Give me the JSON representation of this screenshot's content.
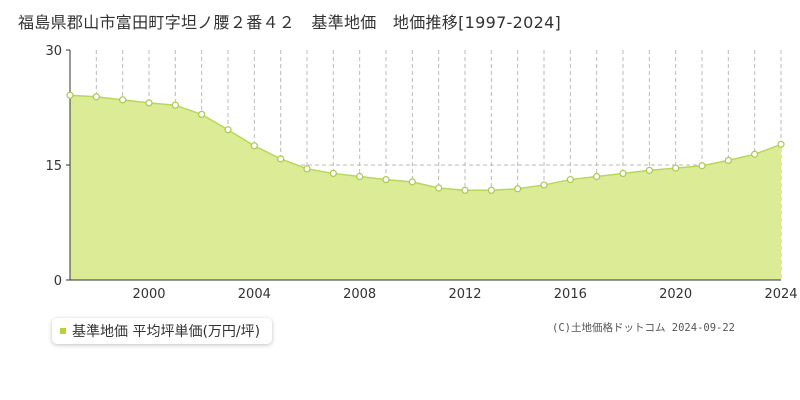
{
  "title": "福島県郡山市富田町字坦ノ腰２番４２　基準地価　地価推移[1997-2024]",
  "copyright": "(C)土地価格ドットコム 2024-09-22",
  "legend": {
    "label": "基準地価 平均坪単価(万円/坪)"
  },
  "colors": {
    "fill": "#dcec96",
    "line": "#b8d75a",
    "marker_fill": "#ffffff",
    "marker_stroke": "#a9c94c",
    "legend_swatch": "#b5d334",
    "grid": "#bbbbbb",
    "axis": "#333333"
  },
  "chart_data": {
    "type": "area",
    "x": [
      1997,
      1998,
      1999,
      2000,
      2001,
      2002,
      2003,
      2004,
      2005,
      2006,
      2007,
      2008,
      2009,
      2010,
      2011,
      2012,
      2013,
      2014,
      2015,
      2016,
      2017,
      2018,
      2019,
      2020,
      2021,
      2022,
      2023,
      2024
    ],
    "series": [
      {
        "name": "基準地価 平均坪単価(万円/坪)",
        "values": [
          24.1,
          23.9,
          23.5,
          23.1,
          22.8,
          21.6,
          19.6,
          17.5,
          15.8,
          14.5,
          13.9,
          13.5,
          13.1,
          12.8,
          12.0,
          11.7,
          11.7,
          11.9,
          12.4,
          13.1,
          13.5,
          13.9,
          14.3,
          14.6,
          14.9,
          15.6,
          16.4,
          17.7
        ]
      }
    ],
    "xlim": [
      1997,
      2024
    ],
    "ylim": [
      0,
      30
    ],
    "yticks": [
      0,
      15,
      30
    ],
    "xticks": [
      2000,
      2004,
      2008,
      2012,
      2016,
      2020,
      2024
    ],
    "xlabel": "",
    "ylabel": "",
    "grid": "vertical dashed every year, horizontal dashed at 15"
  }
}
